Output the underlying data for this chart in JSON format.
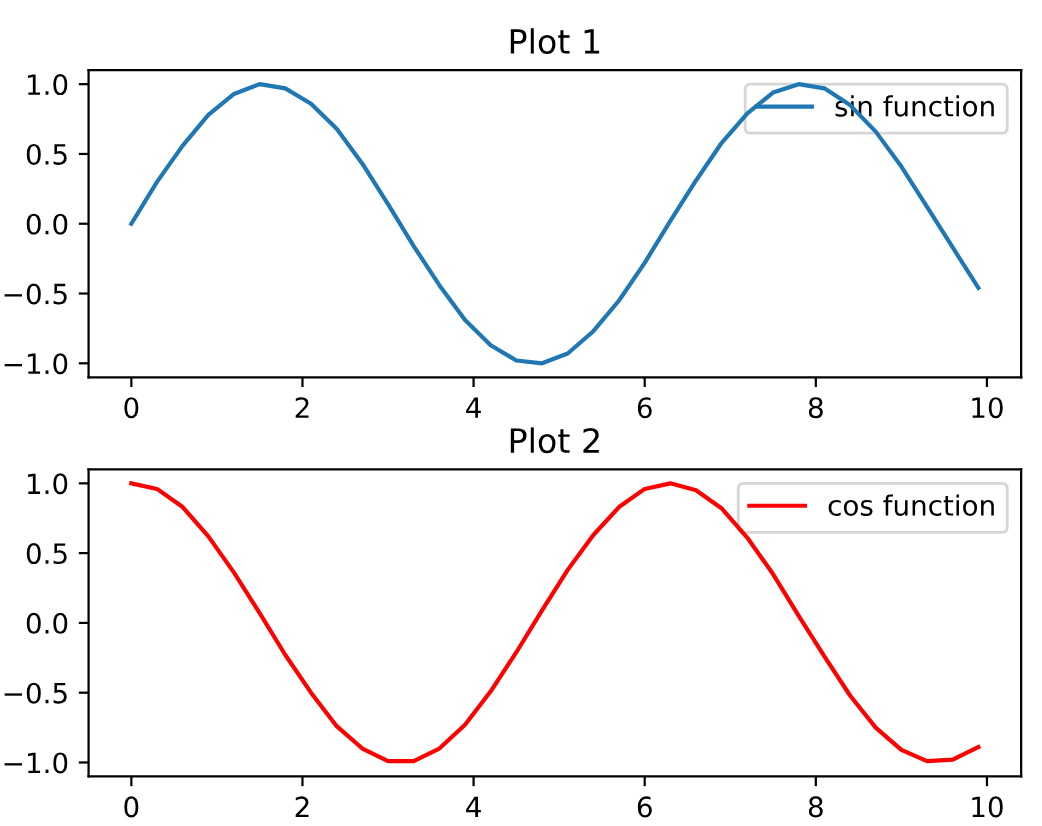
{
  "chart_data": [
    {
      "type": "line",
      "title": "Plot 1",
      "x": [
        0,
        0.3,
        0.6,
        0.9,
        1.2,
        1.5,
        1.8,
        2.1,
        2.4,
        2.7,
        3.0,
        3.3,
        3.6,
        3.9,
        4.2,
        4.5,
        4.8,
        5.1,
        5.4,
        5.7,
        6.0,
        6.3,
        6.6,
        6.9,
        7.2,
        7.5,
        7.8,
        8.1,
        8.4,
        8.7,
        9.0,
        9.3,
        9.6,
        9.9
      ],
      "series": [
        {
          "name": "sin function",
          "color": "#1f77b4",
          "values": [
            0.0,
            0.3,
            0.56,
            0.78,
            0.93,
            1.0,
            0.97,
            0.86,
            0.68,
            0.43,
            0.14,
            -0.16,
            -0.44,
            -0.69,
            -0.87,
            -0.98,
            -1.0,
            -0.93,
            -0.77,
            -0.55,
            -0.28,
            0.02,
            0.31,
            0.58,
            0.79,
            0.94,
            1.0,
            0.97,
            0.85,
            0.66,
            0.41,
            0.12,
            -0.17,
            -0.46
          ]
        }
      ],
      "xlim": [
        -0.5,
        10.4
      ],
      "ylim": [
        -1.1,
        1.1
      ],
      "xticks": [
        0,
        2,
        4,
        6,
        8,
        10
      ],
      "yticks": [
        {
          "value": -1,
          "label": "−1.0"
        },
        {
          "value": -0.5,
          "label": "−0.5"
        },
        {
          "value": 0,
          "label": "0.0"
        },
        {
          "value": 0.5,
          "label": "0.5"
        },
        {
          "value": 1,
          "label": "1.0"
        }
      ],
      "legend": "top right",
      "grid": false,
      "marker": "none",
      "line_style": "solid"
    },
    {
      "type": "line",
      "title": "Plot 2",
      "x": [
        0,
        0.3,
        0.6,
        0.9,
        1.2,
        1.5,
        1.8,
        2.1,
        2.4,
        2.7,
        3.0,
        3.3,
        3.6,
        3.9,
        4.2,
        4.5,
        4.8,
        5.1,
        5.4,
        5.7,
        6.0,
        6.3,
        6.6,
        6.9,
        7.2,
        7.5,
        7.8,
        8.1,
        8.4,
        8.7,
        9.0,
        9.3,
        9.6,
        9.9
      ],
      "series": [
        {
          "name": "cos function",
          "color": "#ff0000",
          "values": [
            1.0,
            0.96,
            0.83,
            0.62,
            0.36,
            0.07,
            -0.23,
            -0.5,
            -0.74,
            -0.9,
            -0.99,
            -0.99,
            -0.9,
            -0.73,
            -0.49,
            -0.21,
            0.09,
            0.38,
            0.63,
            0.83,
            0.96,
            1.0,
            0.95,
            0.82,
            0.61,
            0.35,
            0.05,
            -0.24,
            -0.52,
            -0.75,
            -0.91,
            -0.99,
            -0.98,
            -0.89
          ]
        }
      ],
      "xlim": [
        -0.5,
        10.4
      ],
      "ylim": [
        -1.1,
        1.1
      ],
      "xticks": [
        0,
        2,
        4,
        6,
        8,
        10
      ],
      "yticks": [
        {
          "value": -1,
          "label": "−1.0"
        },
        {
          "value": -0.5,
          "label": "−0.5"
        },
        {
          "value": 0,
          "label": "0.0"
        },
        {
          "value": 0.5,
          "label": "0.5"
        },
        {
          "value": 1,
          "label": "1.0"
        }
      ],
      "legend": "top right",
      "grid": false,
      "marker": "none",
      "line_style": "solid"
    }
  ]
}
